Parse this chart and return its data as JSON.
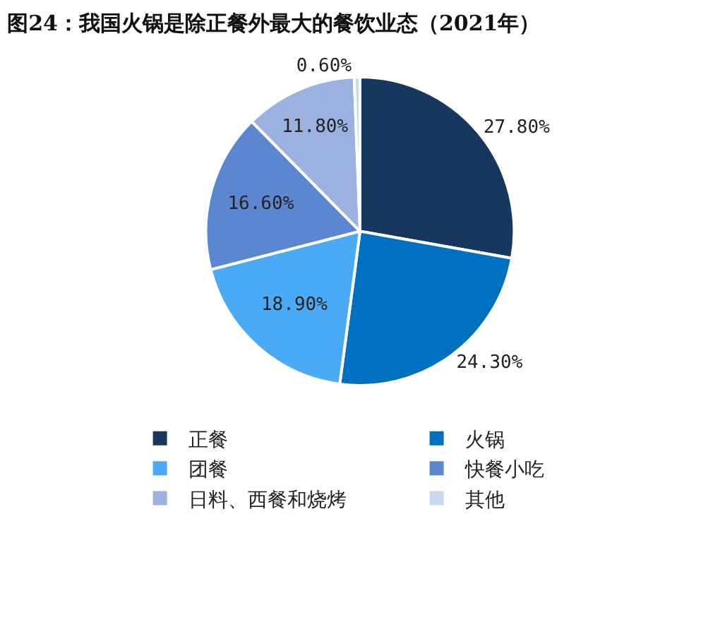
{
  "chart_data": {
    "type": "pie",
    "title": "图24：我国火锅是除正餐外最大的餐饮业态（2021年）",
    "categories": [
      "正餐",
      "火锅",
      "团餐",
      "快餐小吃",
      "日料、西餐和烧烤",
      "其他"
    ],
    "values": [
      27.8,
      24.3,
      18.9,
      16.6,
      11.8,
      0.6
    ],
    "value_labels": [
      "27.80%",
      "24.30%",
      "18.90%",
      "16.60%",
      "11.80%",
      "0.60%"
    ],
    "colors": [
      "#17375e",
      "#0070c0",
      "#4baaf5",
      "#5b87d0",
      "#9bb1e0",
      "#c5d9f1"
    ],
    "legend": "bottom"
  }
}
